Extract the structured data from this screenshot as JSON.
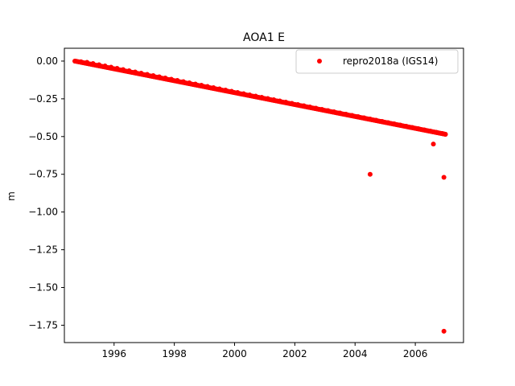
{
  "chart_data": {
    "type": "scatter",
    "title": "AOA1 E",
    "xlabel": "",
    "ylabel": "m",
    "xlim": [
      1994.35,
      2007.6
    ],
    "ylim": [
      -1.865,
      0.085
    ],
    "xticks": [
      1996,
      1998,
      2000,
      2002,
      2004,
      2006
    ],
    "xtick_labels": [
      "1996",
      "1998",
      "2000",
      "2002",
      "2004",
      "2006"
    ],
    "yticks": [
      0.0,
      -0.25,
      -0.5,
      -0.75,
      -1.0,
      -1.25,
      -1.5,
      -1.75
    ],
    "ytick_labels": [
      "0.00",
      "−0.25",
      "−0.50",
      "−0.75",
      "−1.00",
      "−1.25",
      "−1.50",
      "−1.75"
    ],
    "grid": false,
    "legend_position": "top-right",
    "series": [
      {
        "name": "repro2018a (IGS14)",
        "color": "#ff0000",
        "marker": "circle",
        "trend": {
          "x_start": 1994.7,
          "y_start": 0.0,
          "x_end": 2007.0,
          "y_end": -0.485
        },
        "points": [
          [
            1994.7,
            0.0
          ],
          [
            1994.9,
            -0.004
          ],
          [
            1995.1,
            -0.008
          ],
          [
            1995.3,
            -0.016
          ],
          [
            1995.5,
            -0.024
          ],
          [
            1995.7,
            -0.032
          ],
          [
            1995.9,
            -0.04
          ],
          [
            1996.1,
            -0.048
          ],
          [
            1996.3,
            -0.056
          ],
          [
            1996.5,
            -0.064
          ],
          [
            1996.7,
            -0.072
          ],
          [
            1996.9,
            -0.08
          ],
          [
            1997.1,
            -0.088
          ],
          [
            1997.3,
            -0.096
          ],
          [
            1997.5,
            -0.104
          ],
          [
            1997.7,
            -0.112
          ],
          [
            1997.9,
            -0.12
          ],
          [
            1998.1,
            -0.128
          ],
          [
            1998.3,
            -0.136
          ],
          [
            1998.5,
            -0.144
          ],
          [
            1998.7,
            -0.152
          ],
          [
            1998.9,
            -0.16
          ],
          [
            1999.1,
            -0.168
          ],
          [
            1999.3,
            -0.176
          ],
          [
            1999.5,
            -0.184
          ],
          [
            1999.7,
            -0.192
          ],
          [
            1999.9,
            -0.2
          ],
          [
            2000.1,
            -0.208
          ],
          [
            2000.3,
            -0.216
          ],
          [
            2000.5,
            -0.224
          ],
          [
            2000.7,
            -0.232
          ],
          [
            2000.9,
            -0.24
          ],
          [
            2001.1,
            -0.248
          ],
          [
            2001.3,
            -0.256
          ],
          [
            2001.5,
            -0.264
          ],
          [
            2001.7,
            -0.272
          ],
          [
            2001.9,
            -0.28
          ],
          [
            2002.1,
            -0.288
          ],
          [
            2002.3,
            -0.296
          ],
          [
            2002.5,
            -0.304
          ],
          [
            2002.7,
            -0.312
          ],
          [
            2002.9,
            -0.32
          ],
          [
            2003.1,
            -0.328
          ],
          [
            2003.3,
            -0.336
          ],
          [
            2003.5,
            -0.344
          ],
          [
            2003.7,
            -0.352
          ],
          [
            2003.9,
            -0.36
          ],
          [
            2004.1,
            -0.368
          ],
          [
            2004.3,
            -0.376
          ],
          [
            2004.5,
            -0.384
          ],
          [
            2004.7,
            -0.392
          ],
          [
            2004.9,
            -0.4
          ],
          [
            2005.1,
            -0.408
          ],
          [
            2005.3,
            -0.416
          ],
          [
            2005.5,
            -0.424
          ],
          [
            2005.7,
            -0.432
          ],
          [
            2005.9,
            -0.44
          ],
          [
            2006.1,
            -0.448
          ],
          [
            2006.3,
            -0.456
          ],
          [
            2006.5,
            -0.464
          ],
          [
            2006.7,
            -0.472
          ],
          [
            2006.9,
            -0.48
          ],
          [
            2007.0,
            -0.485
          ],
          [
            2004.5,
            -0.75
          ],
          [
            2006.6,
            -0.55
          ],
          [
            2006.95,
            -0.77
          ],
          [
            2006.95,
            -1.79
          ]
        ]
      }
    ]
  }
}
